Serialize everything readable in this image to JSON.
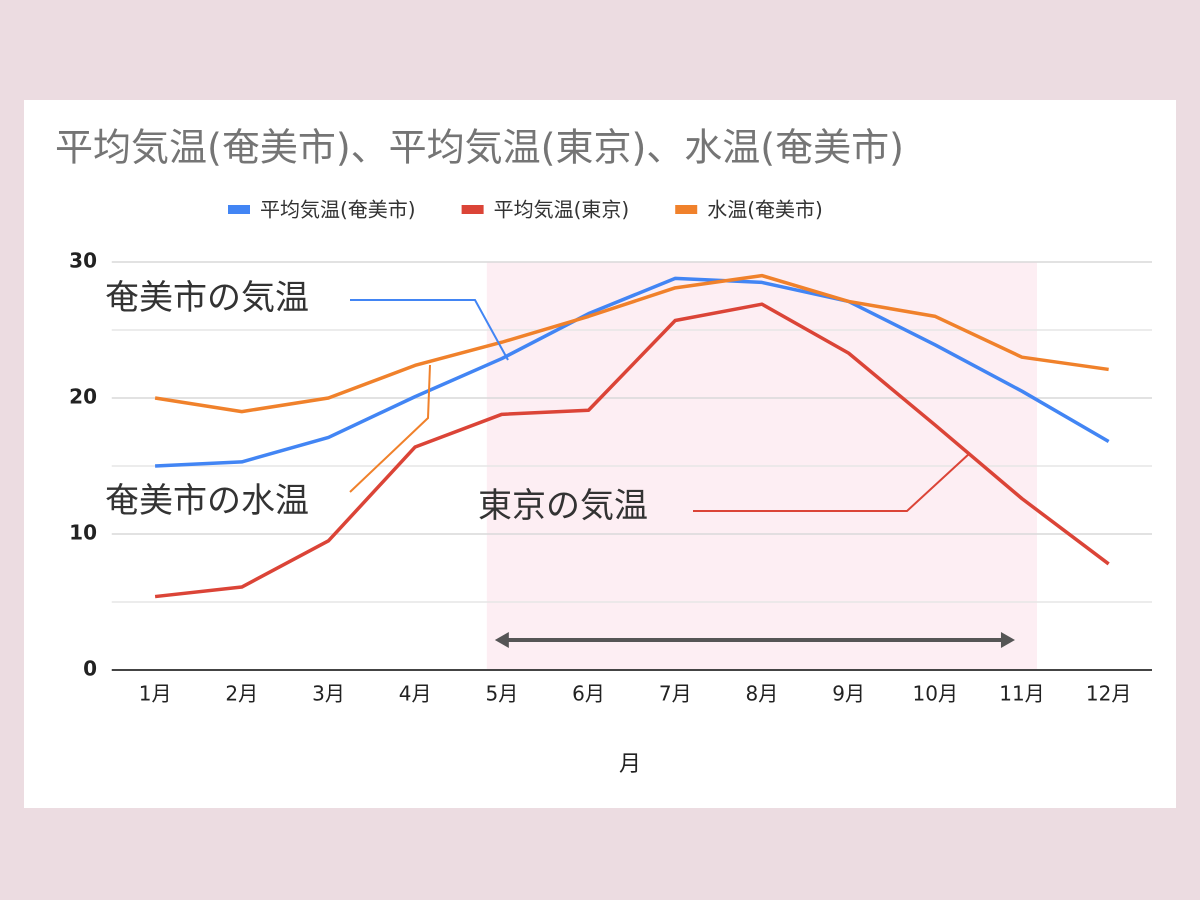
{
  "chart_data": {
    "type": "line",
    "title": "平均気温(奄美市)、平均気温(東京)、水温(奄美市)",
    "x_label": "月",
    "categories": [
      "1月",
      "2月",
      "3月",
      "4月",
      "5月",
      "6月",
      "7月",
      "8月",
      "9月",
      "10月",
      "11月",
      "12月"
    ],
    "series": [
      {
        "name": "平均気温(奄美市)",
        "color": "#4285f4",
        "values": [
          15.0,
          15.3,
          17.1,
          20.1,
          22.9,
          26.2,
          28.8,
          28.5,
          27.1,
          23.9,
          20.5,
          16.8
        ]
      },
      {
        "name": "平均気温(東京)",
        "color": "#db4437",
        "values": [
          5.4,
          6.1,
          9.5,
          16.4,
          18.8,
          19.1,
          25.7,
          26.9,
          23.3,
          18.0,
          12.6,
          7.8
        ]
      },
      {
        "name": "水温(奄美市)",
        "color": "#f0812b",
        "values": [
          20.0,
          19.0,
          20.0,
          22.4,
          24.1,
          26.0,
          28.1,
          29.0,
          27.1,
          26.0,
          23.0,
          22.1
        ]
      }
    ],
    "ylim": [
      0,
      30
    ],
    "yticks": [
      0,
      10,
      20,
      30
    ],
    "minor_yticks": [
      5,
      15,
      25
    ],
    "grid": true,
    "highlight": {
      "start": "5月",
      "end": "11月",
      "color": "#fdeef3"
    },
    "annotations": [
      {
        "text": "奄美市の気温",
        "series": 0
      },
      {
        "text": "奄美市の水温",
        "series": 2
      },
      {
        "text": "東京の気温",
        "series": 1
      }
    ]
  }
}
